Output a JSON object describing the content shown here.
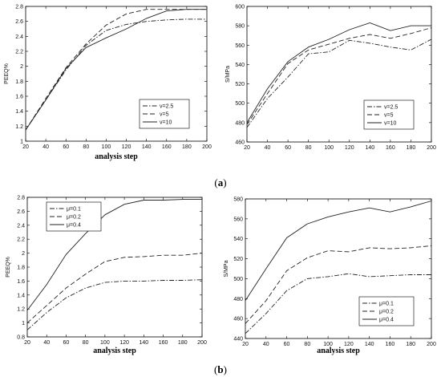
{
  "captions": {
    "a": "a",
    "b": "b"
  },
  "chart_data": [
    {
      "type": "line",
      "ylabel": "PEEQ%",
      "xlabel": "analysis step",
      "x": [
        20,
        40,
        60,
        80,
        100,
        120,
        140,
        160,
        180,
        200
      ],
      "xlim": [
        20,
        200
      ],
      "ylim": [
        1,
        2.8
      ],
      "xticks": [
        "20",
        "40",
        "60",
        "80",
        "100",
        "120",
        "140",
        "160",
        "180",
        "200"
      ],
      "yticks": [
        "1",
        "1.2",
        "1.4",
        "1.6",
        "1.8",
        "2",
        "2.2",
        "2.4",
        "2.6",
        "2.8"
      ],
      "legend_position": "bottom-right",
      "series": [
        {
          "name": "v=2.5",
          "dash": "dashdot",
          "values": [
            1.15,
            1.55,
            1.95,
            2.28,
            2.48,
            2.56,
            2.6,
            2.62,
            2.63,
            2.63
          ]
        },
        {
          "name": "v=5",
          "dash": "dashed",
          "values": [
            1.15,
            1.57,
            1.98,
            2.3,
            2.55,
            2.7,
            2.76,
            2.76,
            2.76,
            2.76
          ]
        },
        {
          "name": "v=10",
          "dash": "solid",
          "values": [
            1.15,
            1.55,
            1.97,
            2.25,
            2.38,
            2.5,
            2.64,
            2.74,
            2.76,
            2.76
          ]
        }
      ]
    },
    {
      "type": "line",
      "ylabel": "S/MPa",
      "xlabel": "",
      "x": [
        20,
        40,
        60,
        80,
        100,
        120,
        140,
        160,
        180,
        200
      ],
      "xlim": [
        20,
        200
      ],
      "ylim": [
        460,
        600
      ],
      "xticks": [
        "20",
        "40",
        "60",
        "80",
        "100",
        "120",
        "140",
        "160",
        "180",
        "200"
      ],
      "yticks": [
        "460",
        "480",
        "500",
        "520",
        "540",
        "560",
        "580",
        "600"
      ],
      "legend_position": "bottom-right",
      "series": [
        {
          "name": "v=2.5",
          "dash": "dashdot",
          "values": [
            475,
            505,
            527,
            551,
            553,
            565,
            562,
            558,
            555,
            566
          ]
        },
        {
          "name": "v=5",
          "dash": "dashed",
          "values": [
            478,
            510,
            541,
            555,
            561,
            567,
            571,
            567,
            572,
            578
          ]
        },
        {
          "name": "v=10",
          "dash": "solid",
          "values": [
            480,
            515,
            543,
            558,
            566,
            576,
            583,
            575,
            580,
            580
          ]
        }
      ]
    },
    {
      "type": "line",
      "ylabel": "PEEQ%",
      "xlabel": "analysis step",
      "x": [
        20,
        40,
        60,
        80,
        100,
        120,
        140,
        160,
        180,
        200
      ],
      "xlim": [
        20,
        200
      ],
      "ylim": [
        0.8,
        2.8
      ],
      "xticks": [
        "20",
        "40",
        "60",
        "80",
        "100",
        "120",
        "140",
        "160",
        "180",
        "200"
      ],
      "yticks": [
        "0.8",
        "1",
        "1.2",
        "1.4",
        "1.6",
        "1.8",
        "2",
        "2.2",
        "2.4",
        "2.6",
        "2.8"
      ],
      "legend_position": "top-left",
      "series": [
        {
          "name": "μ=0.1",
          "dash": "dashdot",
          "values": [
            0.9,
            1.15,
            1.36,
            1.5,
            1.58,
            1.6,
            1.6,
            1.61,
            1.61,
            1.62
          ]
        },
        {
          "name": "μ=0.2",
          "dash": "dashed",
          "values": [
            1.0,
            1.25,
            1.5,
            1.7,
            1.88,
            1.94,
            1.95,
            1.97,
            1.97,
            2.0
          ]
        },
        {
          "name": "μ=0.4",
          "dash": "solid",
          "values": [
            1.18,
            1.55,
            1.98,
            2.28,
            2.55,
            2.7,
            2.76,
            2.76,
            2.77,
            2.77
          ]
        }
      ]
    },
    {
      "type": "line",
      "ylabel": "S/MPa",
      "xlabel": "analysis step",
      "x": [
        20,
        40,
        60,
        80,
        100,
        120,
        140,
        160,
        180,
        200
      ],
      "xlim": [
        20,
        200
      ],
      "ylim": [
        440,
        580
      ],
      "xticks": [
        "20",
        "40",
        "60",
        "80",
        "100",
        "120",
        "140",
        "160",
        "180",
        "200"
      ],
      "yticks": [
        "440",
        "460",
        "480",
        "500",
        "520",
        "540",
        "560",
        "580"
      ],
      "legend_position": "bottom-right",
      "series": [
        {
          "name": "μ=0.1",
          "dash": "dashdot",
          "values": [
            445,
            465,
            488,
            500,
            502,
            505,
            502,
            503,
            504,
            504
          ]
        },
        {
          "name": "μ=0.2",
          "dash": "dashed",
          "values": [
            455,
            478,
            508,
            521,
            528,
            527,
            531,
            530,
            531,
            533
          ]
        },
        {
          "name": "μ=0.4",
          "dash": "solid",
          "values": [
            478,
            510,
            541,
            555,
            562,
            567,
            571,
            567,
            572,
            578
          ]
        }
      ]
    }
  ]
}
